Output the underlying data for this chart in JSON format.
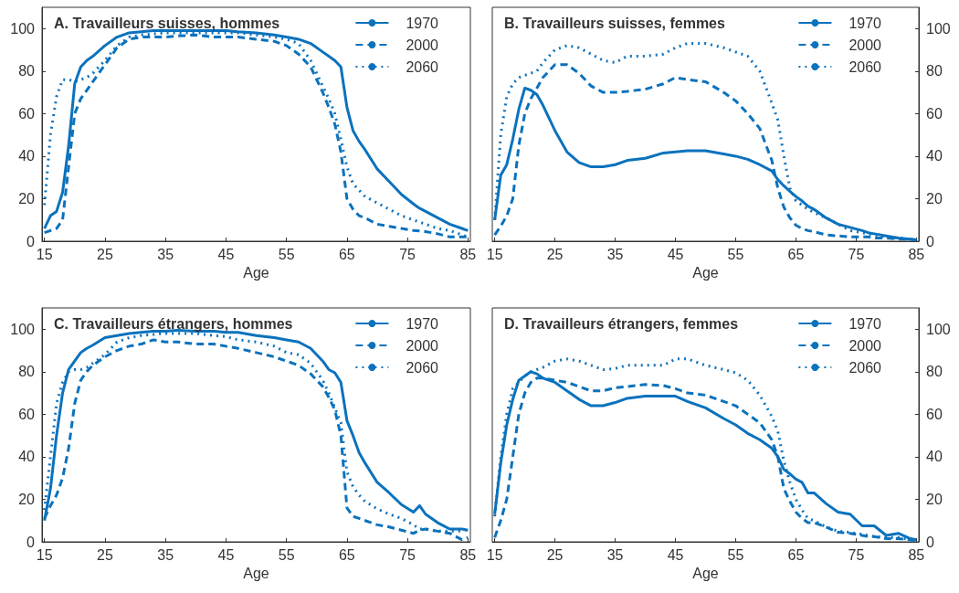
{
  "chart_data": [
    {
      "type": "line",
      "title": "A. Travailleurs suisses, hommes",
      "xlabel": "Age",
      "xlim": [
        14.6,
        85.4
      ],
      "xticks": [
        15,
        25,
        35,
        45,
        55,
        65,
        75,
        85
      ],
      "ylim": [
        0,
        110
      ],
      "yticks": [
        0,
        20,
        40,
        60,
        80,
        100
      ],
      "legend": "top right",
      "grid": false,
      "marker": "none",
      "x": [
        15,
        16,
        17,
        18,
        19,
        20,
        21,
        22,
        23,
        25,
        27,
        29,
        31,
        33,
        35,
        37,
        40,
        43,
        45,
        47,
        50,
        53,
        55,
        57,
        59,
        61,
        62,
        63,
        64,
        65,
        66,
        67,
        68,
        70,
        72,
        74,
        76,
        77,
        78,
        80,
        82,
        84,
        85
      ],
      "series": [
        {
          "name": "1970",
          "color": "#0b72bd",
          "line_style": "solid",
          "values": [
            6,
            12,
            14,
            23,
            45,
            74,
            82,
            85,
            87,
            92,
            96,
            98,
            98.5,
            99,
            99,
            99,
            99,
            99,
            99,
            98.5,
            98,
            97,
            96,
            95,
            93,
            89,
            87,
            85,
            82,
            63,
            52,
            47,
            43,
            34,
            28,
            22,
            17.5,
            15.5,
            14,
            11,
            8,
            6,
            5
          ]
        },
        {
          "name": "2000",
          "color": "#0b72bd",
          "line_style": "dashed",
          "values": [
            4,
            5,
            6,
            10,
            35,
            60,
            67,
            71,
            75,
            83,
            91,
            95,
            96,
            96,
            96,
            96.5,
            97,
            96,
            96,
            96,
            95,
            94,
            92,
            88,
            82,
            70,
            63,
            55,
            42,
            20,
            15,
            12,
            11,
            8,
            7,
            6,
            5,
            4.8,
            4.5,
            3.5,
            2,
            2,
            2
          ]
        },
        {
          "name": "2060",
          "color": "#0b72bd",
          "line_style": "dotted",
          "values": [
            17,
            50,
            68,
            76,
            76,
            75,
            76,
            77,
            79,
            85,
            92,
            96,
            97,
            97.5,
            98,
            98,
            98,
            98,
            98,
            98,
            97,
            96,
            95,
            93,
            85,
            73,
            67,
            60,
            48,
            35,
            27,
            24,
            21,
            18,
            15,
            12,
            10,
            9,
            8,
            6,
            5,
            3,
            2
          ]
        }
      ]
    },
    {
      "type": "line",
      "title": "B. Travailleurs suisses, femmes",
      "xlabel": "Age",
      "xlim": [
        14.6,
        85.4
      ],
      "xticks": [
        15,
        25,
        35,
        45,
        55,
        65,
        75,
        85
      ],
      "ylim": [
        0,
        110
      ],
      "yticks": [
        0,
        20,
        40,
        60,
        80,
        100
      ],
      "legend": "top right",
      "grid": false,
      "marker": "none",
      "x": [
        15,
        16,
        17,
        18,
        19,
        20,
        21,
        22,
        23,
        25,
        27,
        29,
        31,
        33,
        35,
        37,
        40,
        43,
        45,
        47,
        50,
        53,
        55,
        57,
        59,
        61,
        62,
        63,
        64,
        65,
        66,
        67,
        68,
        70,
        72,
        74,
        76,
        77,
        78,
        80,
        82,
        84,
        85
      ],
      "series": [
        {
          "name": "1970",
          "color": "#0b72bd",
          "line_style": "solid",
          "values": [
            10,
            31,
            36,
            48,
            62,
            72,
            71,
            69,
            64,
            52,
            42,
            37,
            35,
            35,
            36,
            38,
            39,
            41.5,
            42,
            42.5,
            42.5,
            41,
            40,
            38.5,
            36,
            33,
            29,
            26,
            23.5,
            21,
            19,
            16.5,
            15,
            11,
            8,
            6.5,
            5,
            4,
            3.5,
            2.5,
            1.5,
            1,
            0.5
          ]
        },
        {
          "name": "2000",
          "color": "#0b72bd",
          "line_style": "dashed",
          "values": [
            3,
            7,
            12,
            20,
            45,
            60,
            67,
            72,
            77,
            83,
            83,
            79,
            73,
            70,
            70,
            70.5,
            71.5,
            74,
            77,
            76,
            75,
            70,
            66,
            60,
            53,
            38,
            25,
            16,
            11,
            7.5,
            6,
            5,
            4.5,
            3,
            2.5,
            2,
            2,
            2,
            1.5,
            1.5,
            1,
            1,
            0.5
          ]
        },
        {
          "name": "2060",
          "color": "#0b72bd",
          "line_style": "dotted",
          "values": [
            10,
            50,
            68,
            74,
            77,
            78,
            79,
            80,
            84,
            90,
            92,
            91,
            88,
            85,
            84,
            87,
            87,
            88,
            91,
            93,
            93,
            91,
            89,
            87,
            80,
            65,
            57,
            40,
            25,
            19,
            17,
            15,
            13.5,
            11,
            8,
            5,
            4,
            3.5,
            3,
            2,
            1.5,
            1,
            0.5
          ]
        }
      ]
    },
    {
      "type": "line",
      "title": "C. Travailleurs étrangers, hommes",
      "xlabel": "Age",
      "xlim": [
        14.6,
        85.4
      ],
      "xticks": [
        15,
        25,
        35,
        45,
        55,
        65,
        75,
        85
      ],
      "ylim": [
        0,
        110
      ],
      "yticks": [
        0,
        20,
        40,
        60,
        80,
        100
      ],
      "legend": "top right",
      "grid": false,
      "marker": "none",
      "x": [
        15,
        16,
        17,
        18,
        19,
        20,
        21,
        22,
        23,
        25,
        27,
        29,
        31,
        33,
        35,
        37,
        40,
        43,
        45,
        47,
        50,
        53,
        55,
        57,
        59,
        61,
        62,
        63,
        64,
        65,
        66,
        67,
        68,
        70,
        72,
        74,
        76,
        77,
        78,
        80,
        82,
        84,
        85
      ],
      "series": [
        {
          "name": "1970",
          "color": "#0b72bd",
          "line_style": "solid",
          "values": [
            10,
            25,
            50,
            70,
            81,
            85,
            89,
            91,
            92.5,
            96,
            97,
            98,
            98.5,
            99,
            99,
            99.5,
            99,
            99,
            98.5,
            98.5,
            97,
            96,
            95,
            94,
            91,
            85,
            81,
            79.5,
            75,
            57,
            50,
            42,
            37,
            28,
            23,
            17.5,
            14,
            17,
            13,
            9,
            6,
            6,
            5.5
          ]
        },
        {
          "name": "2000",
          "color": "#0b72bd",
          "line_style": "dashed",
          "values": [
            11,
            17,
            22,
            30,
            44,
            65,
            76,
            80,
            83,
            87,
            90,
            92,
            93,
            95,
            94,
            94,
            93,
            93,
            92,
            91,
            89,
            87,
            85,
            83,
            79,
            73,
            68,
            62,
            50,
            16,
            12,
            11,
            10,
            8,
            7,
            5.5,
            4,
            5.5,
            6,
            5,
            4,
            1,
            2
          ]
        },
        {
          "name": "2060",
          "color": "#0b72bd",
          "line_style": "dotted",
          "values": [
            15,
            40,
            65,
            75,
            80,
            81,
            81,
            82,
            84,
            88,
            94,
            96,
            97,
            97.5,
            98,
            98,
            98,
            97,
            96.5,
            95,
            94,
            92,
            89,
            88,
            84,
            76,
            70,
            63,
            56,
            33,
            26,
            22,
            19,
            15.5,
            13,
            11,
            8,
            6,
            6,
            5,
            5,
            5,
            6
          ]
        }
      ]
    },
    {
      "type": "line",
      "title": "D. Travailleurs étrangers, femmes",
      "xlabel": "Age",
      "xlim": [
        14.6,
        85.4
      ],
      "xticks": [
        15,
        25,
        35,
        45,
        55,
        65,
        75,
        85
      ],
      "ylim": [
        0,
        110
      ],
      "yticks": [
        0,
        20,
        40,
        60,
        80,
        100
      ],
      "legend": "top right",
      "grid": false,
      "marker": "none",
      "x": [
        15,
        16,
        17,
        18,
        19,
        20,
        21,
        22,
        23,
        25,
        27,
        29,
        31,
        33,
        35,
        37,
        40,
        43,
        45,
        47,
        50,
        53,
        55,
        57,
        59,
        61,
        62,
        63,
        64,
        65,
        66,
        67,
        68,
        70,
        72,
        74,
        76,
        77,
        78,
        80,
        82,
        84,
        85
      ],
      "series": [
        {
          "name": "1970",
          "color": "#0b72bd",
          "line_style": "solid",
          "values": [
            13,
            37,
            55,
            67,
            76,
            78,
            80,
            79,
            77,
            75,
            71,
            67,
            64,
            64,
            65.5,
            67.5,
            68.5,
            68.5,
            68.5,
            66,
            63,
            58,
            55,
            51,
            48,
            44,
            40,
            34,
            32,
            29.5,
            28,
            23,
            23,
            18,
            14,
            13,
            7.5,
            7.5,
            7.5,
            3,
            4,
            1.5,
            1
          ]
        },
        {
          "name": "2000",
          "color": "#0b72bd",
          "line_style": "dashed",
          "values": [
            2,
            10,
            20,
            40,
            60,
            70,
            75,
            77,
            77,
            76,
            75,
            73,
            71,
            71,
            72.5,
            73,
            74,
            73.5,
            72,
            70,
            69,
            66,
            64,
            60,
            56,
            48,
            40,
            25,
            19,
            14,
            11,
            9,
            9,
            7,
            4.5,
            4,
            3,
            2.5,
            2.5,
            1.5,
            1.5,
            1,
            0.5
          ]
        },
        {
          "name": "2060",
          "color": "#0b72bd",
          "line_style": "dotted",
          "values": [
            12,
            40,
            60,
            72,
            75,
            78,
            80,
            81,
            82,
            85,
            86,
            85,
            83,
            81,
            81.5,
            83,
            83,
            83,
            86,
            86,
            83,
            81,
            79.5,
            76,
            69,
            59,
            52,
            38,
            28,
            20,
            15,
            11,
            10,
            7,
            5,
            4.5,
            3.5,
            3,
            2.5,
            2,
            2,
            1,
            0.5
          ]
        }
      ]
    }
  ]
}
